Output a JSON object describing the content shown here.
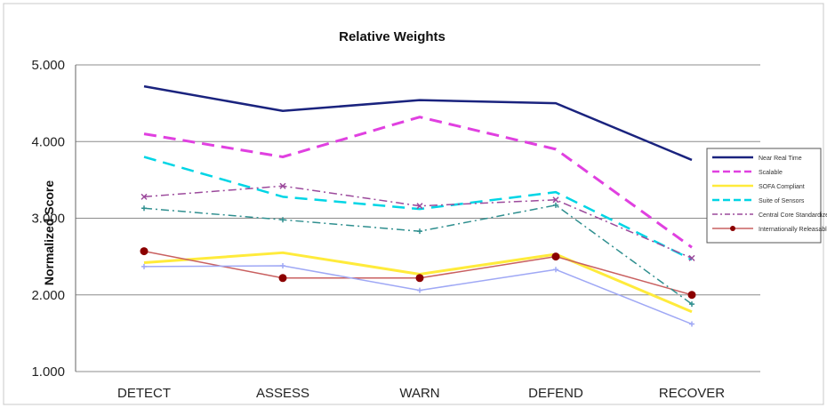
{
  "chart_data": {
    "type": "line",
    "title": "Relative Weights",
    "ylabel": "Normalized Score",
    "xlabel": "",
    "categories": [
      "DETECT",
      "ASSESS",
      "WARN",
      "DEFEND",
      "RECOVER"
    ],
    "ylim": [
      1.0,
      5.0
    ],
    "yticks": [
      1.0,
      2.0,
      3.0,
      4.0,
      5.0
    ],
    "ytick_labels": [
      "1.000",
      "2.000",
      "3.000",
      "4.000",
      "5.000"
    ],
    "grid": true,
    "legend_position": "right",
    "series": [
      {
        "name": "Near Real Time",
        "values": [
          4.72,
          4.4,
          4.54,
          4.5,
          3.76
        ],
        "color": "#1a237e",
        "style": "solid",
        "width": 2.5,
        "marker": "none"
      },
      {
        "name": "Scalable",
        "values": [
          4.1,
          3.8,
          4.32,
          3.9,
          2.62
        ],
        "color": "#e040e0",
        "style": "dash",
        "width": 3,
        "marker": "none"
      },
      {
        "name": "SOFA Compliant",
        "values": [
          2.42,
          2.55,
          2.27,
          2.53,
          1.78
        ],
        "color": "#ffeb3b",
        "style": "solid",
        "width": 3,
        "marker": "none"
      },
      {
        "name": "Suite of Sensors",
        "values": [
          3.8,
          3.28,
          3.12,
          3.34,
          2.46
        ],
        "color": "#00d5e5",
        "style": "dash",
        "width": 2.5,
        "marker": "none"
      },
      {
        "name": "Central Core Standardized Training",
        "values": [
          3.28,
          3.42,
          3.16,
          3.24,
          2.48
        ],
        "color": "#9c4a9c",
        "style": "dashdot",
        "width": 1.5,
        "marker": "x"
      },
      {
        "name": "Internationally Releasable",
        "values": [
          2.57,
          2.22,
          2.22,
          2.5,
          2.0
        ],
        "color": "#c96060",
        "style": "solid",
        "width": 1.5,
        "marker": "circle",
        "marker_color": "#8b0000"
      },
      {
        "name": "",
        "values": [
          3.13,
          2.98,
          2.83,
          3.17,
          1.88
        ],
        "color": "#2f8f8f",
        "style": "dashdot",
        "width": 1.5,
        "marker": "plus"
      },
      {
        "name": "",
        "values": [
          2.37,
          2.38,
          2.06,
          2.33,
          1.62
        ],
        "color": "#9fa8f5",
        "style": "solid",
        "width": 1.5,
        "marker": "plus"
      }
    ]
  }
}
